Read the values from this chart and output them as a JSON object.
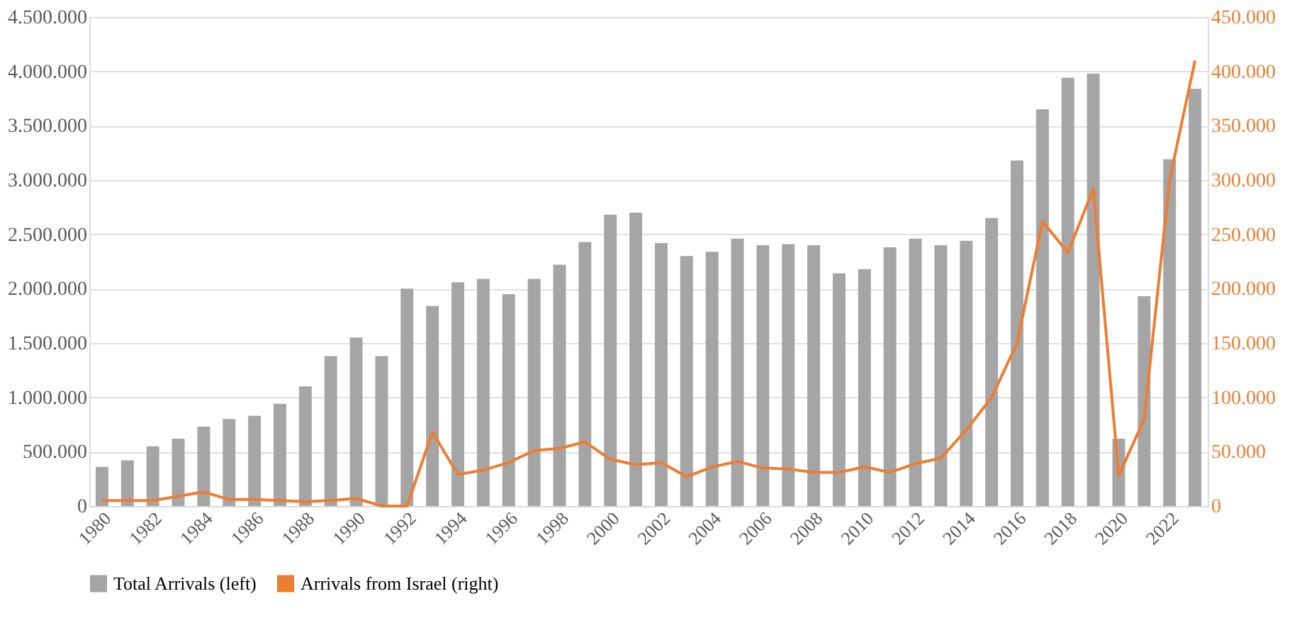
{
  "chart_data": {
    "type": "bar",
    "categories": [
      "1980",
      null,
      "1982",
      null,
      "1984",
      null,
      "1986",
      null,
      "1988",
      null,
      "1990",
      null,
      "1992",
      null,
      "1994",
      null,
      "1996",
      null,
      "1998",
      null,
      "2000",
      null,
      "2002",
      null,
      "2004",
      null,
      "2006",
      null,
      "2008",
      null,
      "2010",
      null,
      "2012",
      null,
      "2014",
      null,
      "2016",
      null,
      "2018",
      null,
      "2020",
      null,
      "2022",
      null
    ],
    "series": [
      {
        "name": "Total Arrivals (left)",
        "color": "#a5a5a5",
        "values": [
          360000,
          420000,
          550000,
          620000,
          730000,
          800000,
          830000,
          940000,
          1100000,
          1380000,
          1550000,
          1380000,
          2000000,
          1840000,
          2060000,
          2090000,
          1950000,
          2090000,
          2220000,
          2430000,
          2680000,
          2700000,
          2420000,
          2300000,
          2340000,
          2460000,
          2400000,
          2410000,
          2400000,
          2140000,
          2180000,
          2380000,
          2460000,
          2400000,
          2440000,
          2650000,
          3180000,
          3650000,
          3940000,
          3980000,
          620000,
          1930000,
          3190000,
          3840000
        ]
      },
      {
        "name": "Arrivals from Israel (right)",
        "color": "#ed7d31",
        "type": "line",
        "axis": "y2",
        "values": [
          5000,
          5000,
          5000,
          9000,
          13000,
          6000,
          6000,
          5000,
          4000,
          5000,
          7000,
          0,
          0,
          68000,
          29000,
          33000,
          40000,
          51000,
          53000,
          59000,
          43000,
          38000,
          40000,
          27000,
          36000,
          41000,
          35000,
          34000,
          31000,
          31000,
          36000,
          31000,
          39000,
          44000,
          70000,
          100000,
          150000,
          262000,
          233000,
          292000,
          28000,
          80000,
          300000,
          410000
        ]
      }
    ],
    "ylim": [
      0,
      4500000
    ],
    "yticks": [
      0,
      {
        "value": 500000,
        "label": "500.000"
      },
      {
        "value": 1000000,
        "label": "1.000.000"
      },
      {
        "value": 1500000,
        "label": "1.500.000"
      },
      {
        "value": 2000000,
        "label": "2.000.000"
      },
      {
        "value": 2500000,
        "label": "2.500.000"
      },
      {
        "value": 3000000,
        "label": "3.000.000"
      },
      {
        "value": 3500000,
        "label": "3.500.000"
      },
      {
        "value": 4000000,
        "label": "4.000.000"
      },
      {
        "value": 4500000,
        "label": "4.500.000"
      }
    ],
    "y2lim": [
      0,
      450000
    ],
    "y2ticks": [
      0,
      {
        "value": 50000,
        "label": "50.000"
      },
      {
        "value": 100000,
        "label": "100.000"
      },
      {
        "value": 150000,
        "label": "150.000"
      },
      {
        "value": 200000,
        "label": "200.000"
      },
      {
        "value": 250000,
        "label": "250.000"
      },
      {
        "value": 300000,
        "label": "300.000"
      },
      {
        "value": 350000,
        "label": "350.000"
      },
      {
        "value": 400000,
        "label": "400.000"
      },
      {
        "value": 450000,
        "label": "450.000"
      }
    ],
    "grid": "y",
    "legend": "bottom",
    "marker": "none",
    "line_style": "solid"
  }
}
